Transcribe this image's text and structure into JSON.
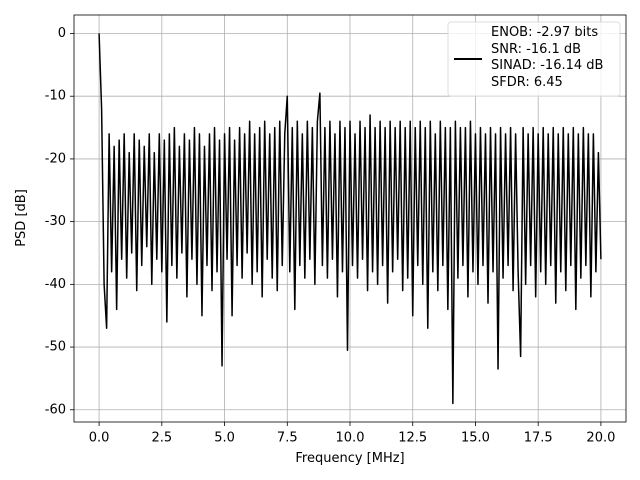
{
  "chart_data": {
    "type": "line",
    "xlabel": "Frequency [MHz]",
    "ylabel": "PSD [dB]",
    "x": [
      0,
      0.1,
      0.2,
      0.3,
      0.4,
      0.5,
      0.6,
      0.7,
      0.8,
      0.9,
      1,
      1.1,
      1.2,
      1.3,
      1.4,
      1.5,
      1.6,
      1.7,
      1.8,
      1.9,
      2,
      2.1,
      2.2,
      2.3,
      2.4,
      2.5,
      2.6,
      2.7,
      2.8,
      2.9,
      3,
      3.1,
      3.2,
      3.3,
      3.4,
      3.5,
      3.6,
      3.7,
      3.8,
      3.9,
      4,
      4.1,
      4.2,
      4.3,
      4.4,
      4.5,
      4.6,
      4.7,
      4.8,
      4.9,
      5,
      5.1,
      5.2,
      5.3,
      5.4,
      5.5,
      5.6,
      5.7,
      5.8,
      5.9,
      6,
      6.1,
      6.2,
      6.3,
      6.4,
      6.5,
      6.6,
      6.7,
      6.8,
      6.9,
      7,
      7.1,
      7.2,
      7.3,
      7.4,
      7.5,
      7.6,
      7.7,
      7.8,
      7.9,
      8,
      8.1,
      8.2,
      8.3,
      8.4,
      8.5,
      8.6,
      8.7,
      8.8,
      8.9,
      9,
      9.1,
      9.2,
      9.3,
      9.4,
      9.5,
      9.6,
      9.7,
      9.8,
      9.9,
      10,
      10.1,
      10.2,
      10.3,
      10.4,
      10.5,
      10.6,
      10.7,
      10.8,
      10.9,
      11,
      11.1,
      11.2,
      11.3,
      11.4,
      11.5,
      11.6,
      11.7,
      11.8,
      11.9,
      12,
      12.1,
      12.2,
      12.3,
      12.4,
      12.5,
      12.6,
      12.7,
      12.8,
      12.9,
      13,
      13.1,
      13.2,
      13.3,
      13.4,
      13.5,
      13.6,
      13.7,
      13.8,
      13.9,
      14,
      14.1,
      14.2,
      14.3,
      14.4,
      14.5,
      14.6,
      14.7,
      14.8,
      14.9,
      15,
      15.1,
      15.2,
      15.3,
      15.4,
      15.5,
      15.6,
      15.7,
      15.8,
      15.9,
      16,
      16.1,
      16.2,
      16.3,
      16.4,
      16.5,
      16.6,
      16.7,
      16.8,
      16.9,
      17,
      17.1,
      17.2,
      17.3,
      17.4,
      17.5,
      17.6,
      17.7,
      17.8,
      17.9,
      18,
      18.1,
      18.2,
      18.3,
      18.4,
      18.5,
      18.6,
      18.7,
      18.8,
      18.9,
      19,
      19.1,
      19.2,
      19.3,
      19.4,
      19.5,
      19.6,
      19.7,
      19.8,
      19.9,
      20
    ],
    "series": [
      {
        "name": "ENOB: -2.97 bits\nSNR: -16.1 dB\nSINAD: -16.14 dB\nSFDR: 6.45",
        "color": "#000000",
        "values": [
          0,
          -12,
          -40,
          -47,
          -16,
          -38,
          -18,
          -44,
          -17,
          -36,
          -16,
          -39,
          -19,
          -35,
          -16,
          -41,
          -17,
          -37,
          -18,
          -34,
          -16,
          -40,
          -19,
          -36,
          -16,
          -38,
          -17,
          -46,
          -16,
          -37,
          -15,
          -39,
          -18,
          -35,
          -16,
          -42,
          -17,
          -36,
          -15,
          -40,
          -16,
          -45,
          -18,
          -37,
          -16,
          -41,
          -15,
          -38,
          -17,
          -53,
          -16,
          -36,
          -15,
          -45,
          -17,
          -37,
          -15,
          -39,
          -16,
          -35,
          -14,
          -40,
          -16,
          -38,
          -15,
          -42,
          -14,
          -36,
          -16,
          -39,
          -15,
          -41,
          -14,
          -37,
          -16,
          -10,
          -38,
          -15,
          -44,
          -14,
          -37,
          -16,
          -39,
          -14,
          -36,
          -15,
          -40,
          -14,
          -9.5,
          -37,
          -15,
          -39,
          -14,
          -36,
          -16,
          -42,
          -14,
          -38,
          -15,
          -50.5,
          -14,
          -37,
          -16,
          -39,
          -14,
          -36,
          -15,
          -41,
          -13,
          -38,
          -15,
          -40,
          -14,
          -37,
          -15,
          -43,
          -14,
          -38,
          -15,
          -36,
          -14,
          -41,
          -15,
          -39,
          -14,
          -45,
          -15,
          -37,
          -14,
          -40,
          -15,
          -47,
          -14,
          -38,
          -16,
          -41,
          -14,
          -37,
          -15,
          -44,
          -15,
          -59,
          -14,
          -39,
          -15,
          -37,
          -15,
          -42,
          -14,
          -38,
          -16,
          -40,
          -15,
          -37,
          -16,
          -43,
          -15,
          -38,
          -16,
          -53.5,
          -15,
          -39,
          -16,
          -37,
          -15,
          -41,
          -16,
          -38,
          -51.5,
          -15,
          -40,
          -16,
          -37,
          -15,
          -42,
          -16,
          -38,
          -15,
          -40,
          -16,
          -37,
          -15,
          -43,
          -16,
          -38,
          -15,
          -41,
          -16,
          -37,
          -15,
          -44,
          -16,
          -39,
          -15,
          -37,
          -16,
          -42,
          -16,
          -38,
          -19,
          -36
        ]
      }
    ],
    "xlim": [
      -1,
      21
    ],
    "xticks": [
      {
        "value": 0,
        "label": "0.0"
      },
      {
        "value": 2.5,
        "label": "2.5"
      },
      {
        "value": 5,
        "label": "5.0"
      },
      {
        "value": 7.5,
        "label": "7.5"
      },
      {
        "value": 10,
        "label": "10.0"
      },
      {
        "value": 12.5,
        "label": "12.5"
      },
      {
        "value": 15,
        "label": "15.0"
      },
      {
        "value": 17.5,
        "label": "17.5"
      },
      {
        "value": 20,
        "label": "20.0"
      }
    ],
    "ylim": [
      -61.95,
      2.95
    ],
    "yticks": [
      0,
      -10,
      -20,
      -30,
      -40,
      -50,
      -60
    ],
    "grid": true,
    "legend": "upper right"
  }
}
